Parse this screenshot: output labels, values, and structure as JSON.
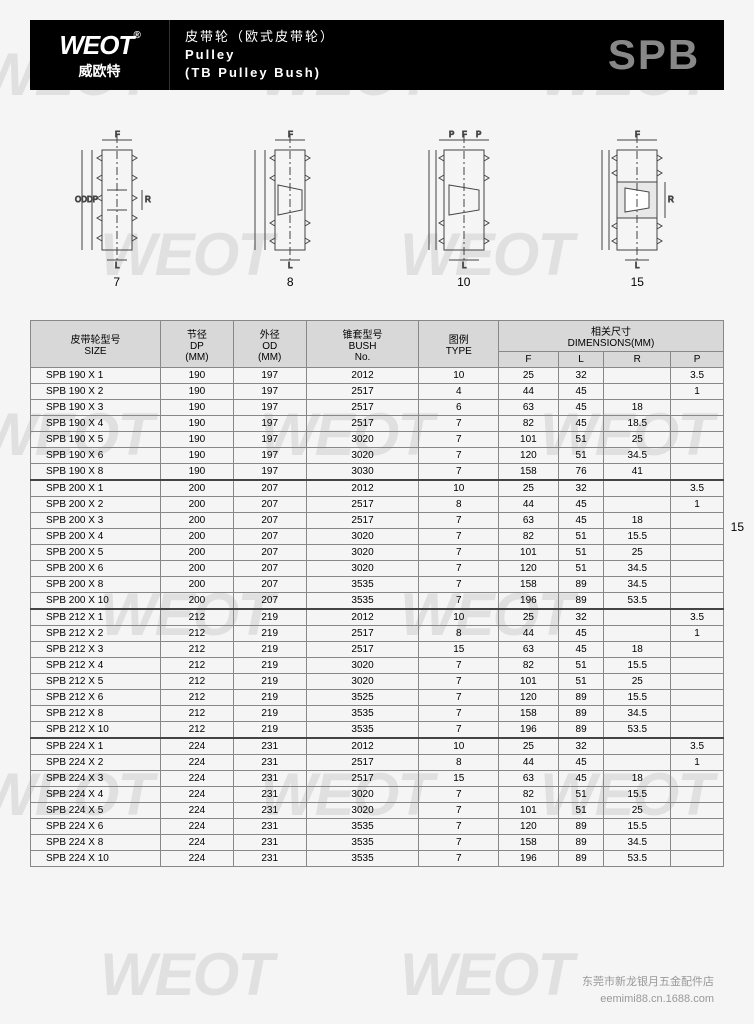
{
  "header": {
    "logo_main": "WEOT",
    "logo_sub": "威欧特",
    "reg_mark": "®",
    "title_cn": "皮带轮（欧式皮带轮）",
    "title_en1": "Pulley",
    "title_en2": "(TB Pulley Bush)",
    "product_code": "SPB"
  },
  "diagrams": {
    "labels": [
      "7",
      "8",
      "10",
      "15"
    ],
    "dim_labels": {
      "F": "F",
      "L": "L",
      "R": "R",
      "P": "P",
      "OD": "OD",
      "DP": "DP"
    }
  },
  "page_number": "15",
  "table": {
    "headers": {
      "size": "皮带轮型号",
      "size_sub": "SIZE",
      "dp": "节径",
      "dp_sub": "DP",
      "dp_unit": "(MM)",
      "od": "外径",
      "od_sub": "OD",
      "od_unit": "(MM)",
      "bush": "锥套型号",
      "bush_sub": "BUSH",
      "bush_no": "No.",
      "type": "图例",
      "type_sub": "TYPE",
      "dims": "相关尺寸",
      "dims_sub": "DIMENSIONS(MM)",
      "F": "F",
      "L": "L",
      "R": "R",
      "P": "P"
    },
    "groups": [
      {
        "rows": [
          {
            "size": "SPB  190  X 1",
            "dp": "190",
            "od": "197",
            "bush": "2012",
            "type": "10",
            "f": "25",
            "l": "32",
            "r": "",
            "p": "3.5"
          },
          {
            "size": "SPB  190  X 2",
            "dp": "190",
            "od": "197",
            "bush": "2517",
            "type": "4",
            "f": "44",
            "l": "45",
            "r": "",
            "p": "1"
          },
          {
            "size": "SPB  190  X 3",
            "dp": "190",
            "od": "197",
            "bush": "2517",
            "type": "6",
            "f": "63",
            "l": "45",
            "r": "18",
            "p": ""
          },
          {
            "size": "SPB  190  X 4",
            "dp": "190",
            "od": "197",
            "bush": "2517",
            "type": "7",
            "f": "82",
            "l": "45",
            "r": "18.5",
            "p": ""
          },
          {
            "size": "SPB  190  X 5",
            "dp": "190",
            "od": "197",
            "bush": "3020",
            "type": "7",
            "f": "101",
            "l": "51",
            "r": "25",
            "p": ""
          },
          {
            "size": "SPB  190  X 6",
            "dp": "190",
            "od": "197",
            "bush": "3020",
            "type": "7",
            "f": "120",
            "l": "51",
            "r": "34.5",
            "p": ""
          },
          {
            "size": "SPB  190  X 8",
            "dp": "190",
            "od": "197",
            "bush": "3030",
            "type": "7",
            "f": "158",
            "l": "76",
            "r": "41",
            "p": ""
          }
        ]
      },
      {
        "rows": [
          {
            "size": "SPB  200  X 1",
            "dp": "200",
            "od": "207",
            "bush": "2012",
            "type": "10",
            "f": "25",
            "l": "32",
            "r": "",
            "p": "3.5"
          },
          {
            "size": "SPB  200  X 2",
            "dp": "200",
            "od": "207",
            "bush": "2517",
            "type": "8",
            "f": "44",
            "l": "45",
            "r": "",
            "p": "1"
          },
          {
            "size": "SPB  200  X 3",
            "dp": "200",
            "od": "207",
            "bush": "2517",
            "type": "7",
            "f": "63",
            "l": "45",
            "r": "18",
            "p": ""
          },
          {
            "size": "SPB  200  X 4",
            "dp": "200",
            "od": "207",
            "bush": "3020",
            "type": "7",
            "f": "82",
            "l": "51",
            "r": "15.5",
            "p": ""
          },
          {
            "size": "SPB  200  X 5",
            "dp": "200",
            "od": "207",
            "bush": "3020",
            "type": "7",
            "f": "101",
            "l": "51",
            "r": "25",
            "p": ""
          },
          {
            "size": "SPB  200  X 6",
            "dp": "200",
            "od": "207",
            "bush": "3020",
            "type": "7",
            "f": "120",
            "l": "51",
            "r": "34.5",
            "p": ""
          },
          {
            "size": "SPB  200  X 8",
            "dp": "200",
            "od": "207",
            "bush": "3535",
            "type": "7",
            "f": "158",
            "l": "89",
            "r": "34.5",
            "p": ""
          },
          {
            "size": "SPB  200  X 10",
            "dp": "200",
            "od": "207",
            "bush": "3535",
            "type": "7",
            "f": "196",
            "l": "89",
            "r": "53.5",
            "p": ""
          }
        ]
      },
      {
        "rows": [
          {
            "size": "SPB  212  X 1",
            "dp": "212",
            "od": "219",
            "bush": "2012",
            "type": "10",
            "f": "25",
            "l": "32",
            "r": "",
            "p": "3.5"
          },
          {
            "size": "SPB  212  X 2",
            "dp": "212",
            "od": "219",
            "bush": "2517",
            "type": "8",
            "f": "44",
            "l": "45",
            "r": "",
            "p": "1"
          },
          {
            "size": "SPB  212  X 3",
            "dp": "212",
            "od": "219",
            "bush": "2517",
            "type": "15",
            "f": "63",
            "l": "45",
            "r": "18",
            "p": ""
          },
          {
            "size": "SPB  212  X 4",
            "dp": "212",
            "od": "219",
            "bush": "3020",
            "type": "7",
            "f": "82",
            "l": "51",
            "r": "15.5",
            "p": ""
          },
          {
            "size": "SPB  212  X 5",
            "dp": "212",
            "od": "219",
            "bush": "3020",
            "type": "7",
            "f": "101",
            "l": "51",
            "r": "25",
            "p": ""
          },
          {
            "size": "SPB  212  X 6",
            "dp": "212",
            "od": "219",
            "bush": "3525",
            "type": "7",
            "f": "120",
            "l": "89",
            "r": "15.5",
            "p": ""
          },
          {
            "size": "SPB  212  X 8",
            "dp": "212",
            "od": "219",
            "bush": "3535",
            "type": "7",
            "f": "158",
            "l": "89",
            "r": "34.5",
            "p": ""
          },
          {
            "size": "SPB  212  X 10",
            "dp": "212",
            "od": "219",
            "bush": "3535",
            "type": "7",
            "f": "196",
            "l": "89",
            "r": "53.5",
            "p": ""
          }
        ]
      },
      {
        "rows": [
          {
            "size": "SPB  224  X 1",
            "dp": "224",
            "od": "231",
            "bush": "2012",
            "type": "10",
            "f": "25",
            "l": "32",
            "r": "",
            "p": "3.5"
          },
          {
            "size": "SPB  224  X 2",
            "dp": "224",
            "od": "231",
            "bush": "2517",
            "type": "8",
            "f": "44",
            "l": "45",
            "r": "",
            "p": "1"
          },
          {
            "size": "SPB  224  X 3",
            "dp": "224",
            "od": "231",
            "bush": "2517",
            "type": "15",
            "f": "63",
            "l": "45",
            "r": "18",
            "p": ""
          },
          {
            "size": "SPB  224  X 4",
            "dp": "224",
            "od": "231",
            "bush": "3020",
            "type": "7",
            "f": "82",
            "l": "51",
            "r": "15.5",
            "p": ""
          },
          {
            "size": "SPB  224  X 5",
            "dp": "224",
            "od": "231",
            "bush": "3020",
            "type": "7",
            "f": "101",
            "l": "51",
            "r": "25",
            "p": ""
          },
          {
            "size": "SPB  224  X 6",
            "dp": "224",
            "od": "231",
            "bush": "3535",
            "type": "7",
            "f": "120",
            "l": "89",
            "r": "15.5",
            "p": ""
          },
          {
            "size": "SPB  224  X 8",
            "dp": "224",
            "od": "231",
            "bush": "3535",
            "type": "7",
            "f": "158",
            "l": "89",
            "r": "34.5",
            "p": ""
          },
          {
            "size": "SPB  224  X 10",
            "dp": "224",
            "od": "231",
            "bush": "3535",
            "type": "7",
            "f": "196",
            "l": "89",
            "r": "53.5",
            "p": ""
          }
        ]
      }
    ]
  },
  "footer": {
    "line1": "东莞市新龙银月五金配件店",
    "line2": "eemimi88.cn.1688.com"
  },
  "colors": {
    "header_bg": "#000000",
    "header_fg": "#ffffff",
    "spb_color": "#888888",
    "th_bg": "#d8d8d8",
    "border": "#888888",
    "stroke": "#444444"
  }
}
